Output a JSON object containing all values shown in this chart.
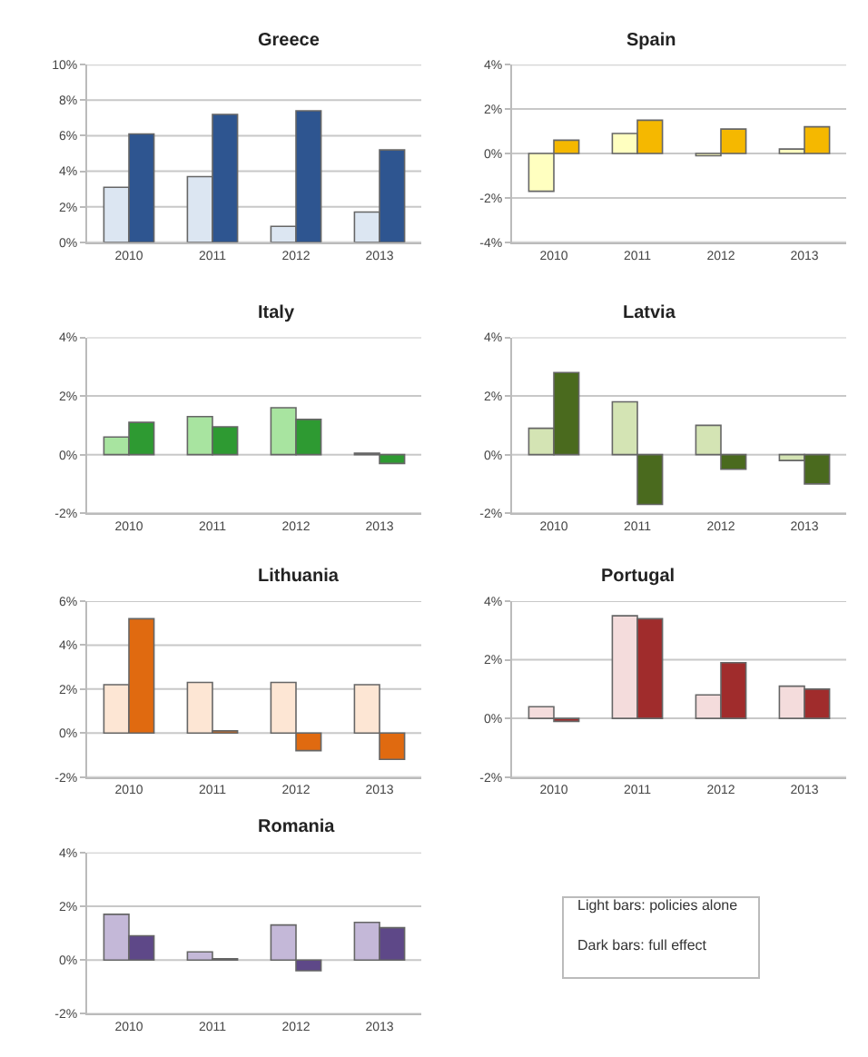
{
  "chart_data": [
    {
      "type": "bar",
      "title": "Greece",
      "categories": [
        "2010",
        "2011",
        "2012",
        "2013"
      ],
      "series": [
        {
          "color": "#dce6f2",
          "values": [
            3.1,
            3.7,
            0.9,
            1.7
          ]
        },
        {
          "color": "#2e5590",
          "values": [
            6.1,
            7.2,
            7.4,
            5.2
          ]
        }
      ],
      "ylim": [
        0,
        10
      ],
      "yticks": [
        {
          "value": 0,
          "label": "0%"
        },
        {
          "value": 2,
          "label": "2%"
        },
        {
          "value": 4,
          "label": "4%"
        },
        {
          "value": 6,
          "label": "6%"
        },
        {
          "value": 8,
          "label": "8%"
        },
        {
          "value": 10,
          "label": "10%"
        }
      ],
      "grid": "y"
    },
    {
      "type": "bar",
      "title": "Spain",
      "categories": [
        "2010",
        "2011",
        "2012",
        "2013"
      ],
      "series": [
        {
          "color": "#ffffc0",
          "values": [
            -1.7,
            0.9,
            -0.1,
            0.2
          ]
        },
        {
          "color": "#f5b800",
          "values": [
            0.6,
            1.5,
            1.1,
            1.2
          ]
        }
      ],
      "ylim": [
        -4,
        4
      ],
      "yticks": [
        {
          "value": -4,
          "label": "-4%"
        },
        {
          "value": -2,
          "label": "-2%"
        },
        {
          "value": 0,
          "label": "0%"
        },
        {
          "value": 2,
          "label": "2%"
        },
        {
          "value": 4,
          "label": "4%"
        }
      ],
      "grid": "y"
    },
    {
      "type": "bar",
      "title": "Italy",
      "categories": [
        "2010",
        "2011",
        "2012",
        "2013"
      ],
      "series": [
        {
          "color": "#a8e4a0",
          "values": [
            0.6,
            1.3,
            1.6,
            0.05
          ]
        },
        {
          "color": "#2e9a32",
          "values": [
            1.1,
            0.95,
            1.2,
            -0.3
          ]
        }
      ],
      "ylim": [
        -2,
        4
      ],
      "yticks": [
        {
          "value": -2,
          "label": "-2%"
        },
        {
          "value": 0,
          "label": "0%"
        },
        {
          "value": 2,
          "label": "2%"
        },
        {
          "value": 4,
          "label": "4%"
        }
      ],
      "grid": "y"
    },
    {
      "type": "bar",
      "title": "Latvia",
      "categories": [
        "2010",
        "2011",
        "2012",
        "2013"
      ],
      "series": [
        {
          "color": "#d4e4b4",
          "values": [
            0.9,
            1.8,
            1.0,
            -0.2
          ]
        },
        {
          "color": "#4a6a1e",
          "values": [
            2.8,
            -1.7,
            -0.5,
            -1.0
          ]
        }
      ],
      "ylim": [
        -2,
        4
      ],
      "yticks": [
        {
          "value": -2,
          "label": "-2%"
        },
        {
          "value": 0,
          "label": "0%"
        },
        {
          "value": 2,
          "label": "2%"
        },
        {
          "value": 4,
          "label": "4%"
        }
      ],
      "grid": "y"
    },
    {
      "type": "bar",
      "title": "Lithuania",
      "categories": [
        "2010",
        "2011",
        "2012",
        "2013"
      ],
      "series": [
        {
          "color": "#fde6d4",
          "values": [
            2.2,
            2.3,
            2.3,
            2.2
          ]
        },
        {
          "color": "#e06a10",
          "values": [
            5.2,
            0.1,
            -0.8,
            -1.2
          ]
        }
      ],
      "ylim": [
        -2,
        6
      ],
      "yticks": [
        {
          "value": -2,
          "label": "-2%"
        },
        {
          "value": 0,
          "label": "0%"
        },
        {
          "value": 2,
          "label": "2%"
        },
        {
          "value": 4,
          "label": "4%"
        },
        {
          "value": 6,
          "label": "6%"
        }
      ],
      "grid": "y"
    },
    {
      "type": "bar",
      "title": "Portugal",
      "categories": [
        "2010",
        "2011",
        "2012",
        "2013"
      ],
      "series": [
        {
          "color": "#f4dcdc",
          "values": [
            0.4,
            3.5,
            0.8,
            1.1
          ]
        },
        {
          "color": "#a02c2c",
          "values": [
            -0.1,
            3.4,
            1.9,
            1.0
          ]
        }
      ],
      "ylim": [
        -2,
        4
      ],
      "yticks": [
        {
          "value": -2,
          "label": "-2%"
        },
        {
          "value": 0,
          "label": "0%"
        },
        {
          "value": 2,
          "label": "2%"
        },
        {
          "value": 4,
          "label": "4%"
        }
      ],
      "grid": "y"
    },
    {
      "type": "bar",
      "title": "Romania",
      "categories": [
        "2010",
        "2011",
        "2012",
        "2013"
      ],
      "series": [
        {
          "color": "#c4b8d8",
          "values": [
            1.7,
            0.3,
            1.3,
            1.4
          ]
        },
        {
          "color": "#5e4888",
          "values": [
            0.9,
            0.05,
            -0.4,
            1.2
          ]
        }
      ],
      "ylim": [
        -2,
        4
      ],
      "yticks": [
        {
          "value": -2,
          "label": "-2%"
        },
        {
          "value": 0,
          "label": "0%"
        },
        {
          "value": 2,
          "label": "2%"
        },
        {
          "value": 4,
          "label": "4%"
        }
      ],
      "grid": "y"
    },
    {
      "type": "other",
      "annotations": [
        "Light bars: policies alone",
        "Dark bars: full effect"
      ]
    }
  ]
}
